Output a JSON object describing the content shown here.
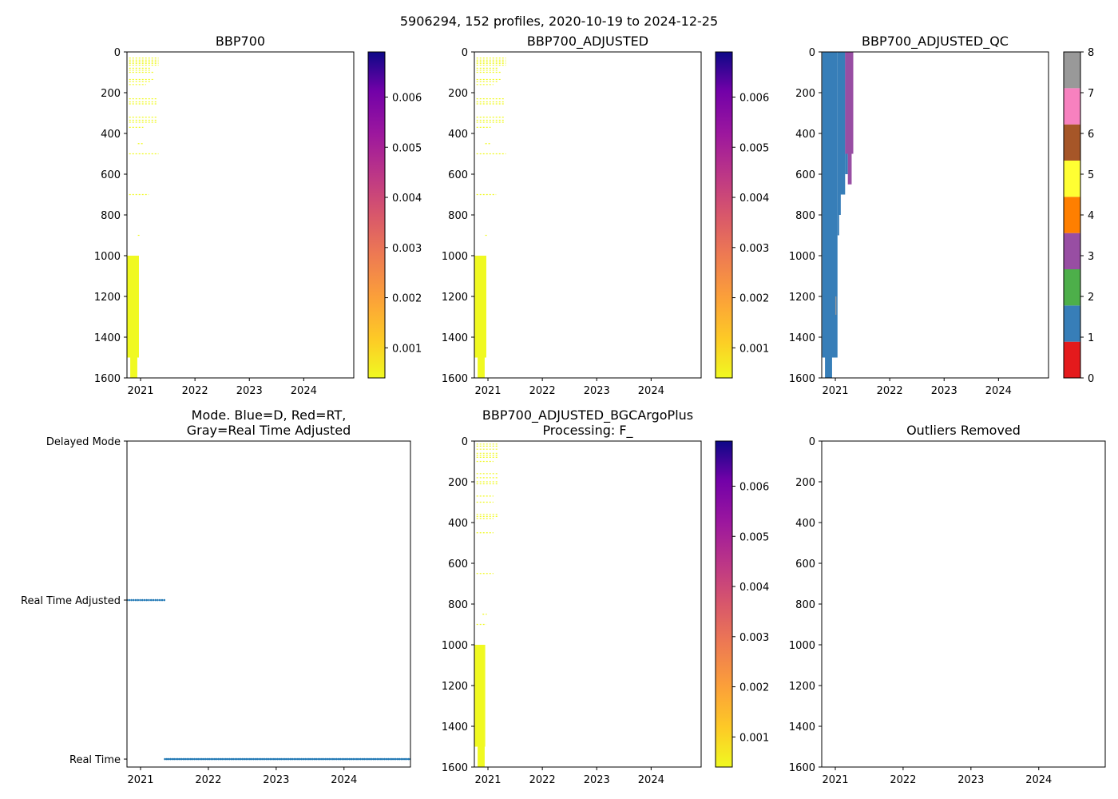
{
  "figure": {
    "title": "5906294, 152 profiles, 2020-10-19 to 2024-12-25"
  },
  "colors": {
    "dm_marker": "#1f77b4",
    "plasma_low": "#f0f921",
    "plasma_high": "#0d0887",
    "qc_1": "#377eb8",
    "qc_3": "#984ea3",
    "qc_gray": "#999999"
  },
  "chart_data": [
    {
      "id": "bbp700",
      "type": "heatmap",
      "title": "BBP700",
      "x_ticks": [
        "2021",
        "2022",
        "2023",
        "2024"
      ],
      "x_tick_values": [
        2021.0,
        2022.0,
        2023.0,
        2024.0
      ],
      "xlim": [
        2020.75,
        2024.92
      ],
      "y_ticks": [
        "0",
        "200",
        "400",
        "600",
        "800",
        "1000",
        "1200",
        "1400",
        "1600"
      ],
      "y_tick_values": [
        0,
        200,
        400,
        600,
        800,
        1000,
        1200,
        1400,
        1600
      ],
      "ylim": [
        0,
        1600
      ],
      "y_inverted": true,
      "colorbar": {
        "cmap": "plasma_r",
        "ticks": [
          "0.001",
          "0.002",
          "0.003",
          "0.004",
          "0.005",
          "0.006"
        ],
        "tick_values": [
          0.001,
          0.002,
          0.003,
          0.004,
          0.005,
          0.006
        ],
        "range": [
          0.0004,
          0.0069
        ]
      },
      "blocks": [
        {
          "x0": 2020.75,
          "x1": 2020.97,
          "y0": 1000,
          "y1": 1500
        },
        {
          "x0": 2020.81,
          "x1": 2020.94,
          "y0": 1500,
          "y1": 1600
        }
      ],
      "dashes": [
        {
          "x0": 2020.79,
          "x1": 2021.33,
          "y": 30
        },
        {
          "x0": 2020.79,
          "x1": 2021.33,
          "y": 40
        },
        {
          "x0": 2020.79,
          "x1": 2021.33,
          "y": 48
        },
        {
          "x0": 2020.79,
          "x1": 2021.33,
          "y": 56
        },
        {
          "x0": 2020.79,
          "x1": 2021.33,
          "y": 65
        },
        {
          "x0": 2020.79,
          "x1": 2021.2,
          "y": 80
        },
        {
          "x0": 2020.79,
          "x1": 2021.2,
          "y": 90
        },
        {
          "x0": 2020.79,
          "x1": 2021.25,
          "y": 100
        },
        {
          "x0": 2020.79,
          "x1": 2021.25,
          "y": 135
        },
        {
          "x0": 2020.79,
          "x1": 2021.2,
          "y": 145
        },
        {
          "x0": 2020.79,
          "x1": 2021.1,
          "y": 160
        },
        {
          "x0": 2020.79,
          "x1": 2021.3,
          "y": 230
        },
        {
          "x0": 2020.79,
          "x1": 2021.3,
          "y": 245
        },
        {
          "x0": 2020.79,
          "x1": 2021.3,
          "y": 255
        },
        {
          "x0": 2020.79,
          "x1": 2021.3,
          "y": 320
        },
        {
          "x0": 2020.79,
          "x1": 2021.3,
          "y": 335
        },
        {
          "x0": 2020.79,
          "x1": 2021.3,
          "y": 345
        },
        {
          "x0": 2020.79,
          "x1": 2021.05,
          "y": 370
        },
        {
          "x0": 2020.95,
          "x1": 2021.05,
          "y": 450
        },
        {
          "x0": 2020.79,
          "x1": 2021.33,
          "y": 500
        },
        {
          "x0": 2020.79,
          "x1": 2021.15,
          "y": 700
        },
        {
          "x0": 2020.95,
          "x1": 2021.0,
          "y": 900
        }
      ]
    },
    {
      "id": "bbp700_adjusted",
      "type": "heatmap",
      "title": "BBP700_ADJUSTED",
      "x_ticks": [
        "2021",
        "2022",
        "2023",
        "2024"
      ],
      "x_tick_values": [
        2021.0,
        2022.0,
        2023.0,
        2024.0
      ],
      "xlim": [
        2020.75,
        2024.92
      ],
      "y_ticks": [
        "0",
        "200",
        "400",
        "600",
        "800",
        "1000",
        "1200",
        "1400",
        "1600"
      ],
      "y_tick_values": [
        0,
        200,
        400,
        600,
        800,
        1000,
        1200,
        1400,
        1600
      ],
      "ylim": [
        0,
        1600
      ],
      "y_inverted": true,
      "colorbar": {
        "cmap": "plasma_r",
        "ticks": [
          "0.001",
          "0.002",
          "0.003",
          "0.004",
          "0.005",
          "0.006"
        ],
        "tick_values": [
          0.001,
          0.002,
          0.003,
          0.004,
          0.005,
          0.006
        ],
        "range": [
          0.0004,
          0.0069
        ]
      },
      "blocks": [
        {
          "x0": 2020.75,
          "x1": 2020.97,
          "y0": 1000,
          "y1": 1500
        },
        {
          "x0": 2020.81,
          "x1": 2020.94,
          "y0": 1500,
          "y1": 1600
        }
      ],
      "dashes": [
        {
          "x0": 2020.79,
          "x1": 2021.33,
          "y": 30
        },
        {
          "x0": 2020.79,
          "x1": 2021.33,
          "y": 40
        },
        {
          "x0": 2020.79,
          "x1": 2021.33,
          "y": 48
        },
        {
          "x0": 2020.79,
          "x1": 2021.33,
          "y": 56
        },
        {
          "x0": 2020.79,
          "x1": 2021.33,
          "y": 65
        },
        {
          "x0": 2020.79,
          "x1": 2021.2,
          "y": 80
        },
        {
          "x0": 2020.79,
          "x1": 2021.2,
          "y": 90
        },
        {
          "x0": 2020.79,
          "x1": 2021.25,
          "y": 100
        },
        {
          "x0": 2020.79,
          "x1": 2021.25,
          "y": 135
        },
        {
          "x0": 2020.79,
          "x1": 2021.2,
          "y": 145
        },
        {
          "x0": 2020.79,
          "x1": 2021.1,
          "y": 160
        },
        {
          "x0": 2020.79,
          "x1": 2021.3,
          "y": 230
        },
        {
          "x0": 2020.79,
          "x1": 2021.3,
          "y": 245
        },
        {
          "x0": 2020.79,
          "x1": 2021.3,
          "y": 255
        },
        {
          "x0": 2020.79,
          "x1": 2021.3,
          "y": 320
        },
        {
          "x0": 2020.79,
          "x1": 2021.3,
          "y": 335
        },
        {
          "x0": 2020.79,
          "x1": 2021.3,
          "y": 345
        },
        {
          "x0": 2020.79,
          "x1": 2021.05,
          "y": 370
        },
        {
          "x0": 2020.95,
          "x1": 2021.05,
          "y": 450
        },
        {
          "x0": 2020.79,
          "x1": 2021.33,
          "y": 500
        },
        {
          "x0": 2020.79,
          "x1": 2021.15,
          "y": 700
        },
        {
          "x0": 2020.95,
          "x1": 2021.0,
          "y": 900
        }
      ]
    },
    {
      "id": "bbp700_adjusted_qc",
      "type": "heatmap",
      "title": "BBP700_ADJUSTED_QC",
      "x_ticks": [
        "2021",
        "2022",
        "2023",
        "2024"
      ],
      "x_tick_values": [
        2021.0,
        2022.0,
        2023.0,
        2024.0
      ],
      "xlim": [
        2020.75,
        2024.92
      ],
      "y_ticks": [
        "0",
        "200",
        "400",
        "600",
        "800",
        "1000",
        "1200",
        "1400",
        "1600"
      ],
      "y_tick_values": [
        0,
        200,
        400,
        600,
        800,
        1000,
        1200,
        1400,
        1600
      ],
      "ylim": [
        0,
        1600
      ],
      "y_inverted": true,
      "colorbar": {
        "cmap": "Set1",
        "ticks": [
          "0",
          "1",
          "2",
          "3",
          "4",
          "5",
          "6",
          "7",
          "8"
        ],
        "tick_values": [
          0,
          1,
          2,
          3,
          4,
          5,
          6,
          7,
          8
        ],
        "range": [
          0,
          8
        ],
        "segments": [
          "#e41a1c",
          "#377eb8",
          "#4daf4a",
          "#984ea3",
          "#ff7f00",
          "#ffff33",
          "#a65628",
          "#f781bf",
          "#999999"
        ]
      },
      "blocks": [
        {
          "x0": 2020.76,
          "x1": 2021.04,
          "y0": 0,
          "y1": 1500,
          "c": 1
        },
        {
          "x0": 2020.81,
          "x1": 2020.94,
          "y0": 1500,
          "y1": 1600,
          "c": 1
        },
        {
          "x0": 2021.04,
          "x1": 2021.18,
          "y0": 0,
          "y1": 700,
          "c": 1
        },
        {
          "x0": 2021.04,
          "x1": 2021.1,
          "y0": 700,
          "y1": 800,
          "c": 1
        },
        {
          "x0": 2021.04,
          "x1": 2021.07,
          "y0": 800,
          "y1": 900,
          "c": 1
        },
        {
          "x0": 2021.18,
          "x1": 2021.23,
          "y0": 0,
          "y1": 600,
          "c": 1
        },
        {
          "x0": 2021.18,
          "x1": 2021.33,
          "y0": 0,
          "y1": 500,
          "c": 3
        },
        {
          "x0": 2021.23,
          "x1": 2021.3,
          "y0": 500,
          "y1": 650,
          "c": 3
        },
        {
          "x0": 2021.0,
          "x1": 2021.02,
          "y0": 1200,
          "y1": 1290,
          "c": 8
        }
      ]
    },
    {
      "id": "data_mode",
      "type": "scatter",
      "title_lines": [
        "Mode. Blue=D, Red=RT,",
        "Gray=Real Time Adjusted"
      ],
      "x_ticks": [
        "2021",
        "2022",
        "2023",
        "2024"
      ],
      "x_tick_values": [
        2021.0,
        2022.0,
        2023.0,
        2024.0
      ],
      "xlim": [
        2020.8,
        2024.98
      ],
      "y_categories": [
        "Delayed Mode",
        "Real Time Adjusted",
        "Real Time"
      ],
      "y_category_values": [
        2,
        1,
        0
      ],
      "ylim": [
        -0.05,
        2.0
      ],
      "series": [
        {
          "name": "Real Time Adjusted",
          "y": 1,
          "x_start": 2020.8,
          "x_end": 2021.35,
          "count": 18
        },
        {
          "name": "Real Time",
          "y": 0,
          "x_start": 2021.36,
          "x_end": 2024.98,
          "count": 134
        }
      ]
    },
    {
      "id": "bbp700_adjusted_bgcargoplus",
      "type": "heatmap",
      "title_lines": [
        "BBP700_ADJUSTED_BGCArgoPlus",
        "Processing: F_"
      ],
      "x_ticks": [
        "2021",
        "2022",
        "2023",
        "2024"
      ],
      "x_tick_values": [
        2021.0,
        2022.0,
        2023.0,
        2024.0
      ],
      "xlim": [
        2020.75,
        2024.92
      ],
      "y_ticks": [
        "0",
        "200",
        "400",
        "600",
        "800",
        "1000",
        "1200",
        "1400",
        "1600"
      ],
      "y_tick_values": [
        0,
        200,
        400,
        600,
        800,
        1000,
        1200,
        1400,
        1600
      ],
      "ylim": [
        0,
        1600
      ],
      "y_inverted": true,
      "colorbar": {
        "cmap": "plasma_r",
        "ticks": [
          "0.001",
          "0.002",
          "0.003",
          "0.004",
          "0.005",
          "0.006"
        ],
        "tick_values": [
          0.001,
          0.002,
          0.003,
          0.004,
          0.005,
          0.006
        ],
        "range": [
          0.0004,
          0.0069
        ]
      },
      "blocks": [
        {
          "x0": 2020.75,
          "x1": 2020.95,
          "y0": 1000,
          "y1": 1500
        },
        {
          "x0": 2020.81,
          "x1": 2020.94,
          "y0": 1500,
          "y1": 1600
        }
      ],
      "dashes": [
        {
          "x0": 2020.79,
          "x1": 2021.2,
          "y": 15
        },
        {
          "x0": 2020.79,
          "x1": 2021.2,
          "y": 25
        },
        {
          "x0": 2020.79,
          "x1": 2021.2,
          "y": 40
        },
        {
          "x0": 2020.79,
          "x1": 2021.2,
          "y": 60
        },
        {
          "x0": 2020.79,
          "x1": 2021.2,
          "y": 70
        },
        {
          "x0": 2020.79,
          "x1": 2021.2,
          "y": 80
        },
        {
          "x0": 2020.79,
          "x1": 2021.1,
          "y": 100
        },
        {
          "x0": 2020.79,
          "x1": 2021.2,
          "y": 160
        },
        {
          "x0": 2020.79,
          "x1": 2021.2,
          "y": 180
        },
        {
          "x0": 2020.79,
          "x1": 2021.2,
          "y": 200
        },
        {
          "x0": 2020.79,
          "x1": 2021.2,
          "y": 210
        },
        {
          "x0": 2020.79,
          "x1": 2021.1,
          "y": 270
        },
        {
          "x0": 2020.79,
          "x1": 2021.1,
          "y": 300
        },
        {
          "x0": 2020.79,
          "x1": 2021.2,
          "y": 360
        },
        {
          "x0": 2020.79,
          "x1": 2021.2,
          "y": 370
        },
        {
          "x0": 2020.79,
          "x1": 2021.1,
          "y": 380
        },
        {
          "x0": 2020.79,
          "x1": 2021.1,
          "y": 450
        },
        {
          "x0": 2020.79,
          "x1": 2021.1,
          "y": 650
        },
        {
          "x0": 2020.9,
          "x1": 2020.98,
          "y": 850
        },
        {
          "x0": 2020.79,
          "x1": 2020.97,
          "y": 900
        }
      ]
    },
    {
      "id": "outliers_removed",
      "type": "heatmap",
      "title": "Outliers Removed",
      "x_ticks": [
        "2021",
        "2022",
        "2023",
        "2024"
      ],
      "x_tick_values": [
        2021.0,
        2022.0,
        2023.0,
        2024.0
      ],
      "xlim": [
        2020.8,
        2024.98
      ],
      "y_ticks": [
        "0",
        "200",
        "400",
        "600",
        "800",
        "1000",
        "1200",
        "1400",
        "1600"
      ],
      "y_tick_values": [
        0,
        200,
        400,
        600,
        800,
        1000,
        1200,
        1400,
        1600
      ],
      "ylim": [
        0,
        1600
      ],
      "y_inverted": true,
      "blocks": []
    }
  ]
}
